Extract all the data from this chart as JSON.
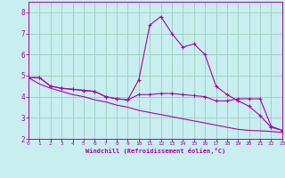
{
  "x": [
    0,
    1,
    2,
    3,
    4,
    5,
    6,
    7,
    8,
    9,
    10,
    11,
    12,
    13,
    14,
    15,
    16,
    17,
    18,
    19,
    20,
    21,
    22,
    23
  ],
  "line_spike": [
    4.9,
    4.9,
    4.5,
    4.4,
    4.35,
    4.3,
    4.25,
    4.0,
    3.9,
    3.85,
    4.8,
    7.4,
    7.8,
    7.0,
    6.35,
    6.5,
    6.0,
    4.5,
    4.1,
    3.8,
    3.55,
    3.1,
    2.55,
    2.4
  ],
  "line_flat": [
    4.9,
    4.9,
    4.5,
    4.4,
    4.35,
    4.3,
    4.25,
    4.0,
    3.9,
    3.85,
    4.1,
    4.1,
    4.15,
    4.15,
    4.1,
    4.05,
    4.0,
    3.8,
    3.8,
    3.9,
    3.9,
    3.9,
    2.6,
    2.4
  ],
  "line_diag": [
    4.9,
    4.6,
    4.4,
    4.25,
    4.1,
    4.0,
    3.85,
    3.75,
    3.6,
    3.5,
    3.35,
    3.25,
    3.15,
    3.05,
    2.95,
    2.85,
    2.75,
    2.65,
    2.55,
    2.45,
    2.4,
    2.38,
    2.35,
    2.3
  ],
  "bg_color": "#c8eef0",
  "grid_color": "#99ccbb",
  "line_color": "#aa00aa",
  "xlabel": "Windchill (Refroidissement éolien,°C)",
  "ylim": [
    2,
    8.5
  ],
  "xlim": [
    0,
    23
  ],
  "yticks": [
    2,
    3,
    4,
    5,
    6,
    7,
    8
  ],
  "xticks": [
    0,
    1,
    2,
    3,
    4,
    5,
    6,
    7,
    8,
    9,
    10,
    11,
    12,
    13,
    14,
    15,
    16,
    17,
    18,
    19,
    20,
    21,
    22,
    23
  ]
}
